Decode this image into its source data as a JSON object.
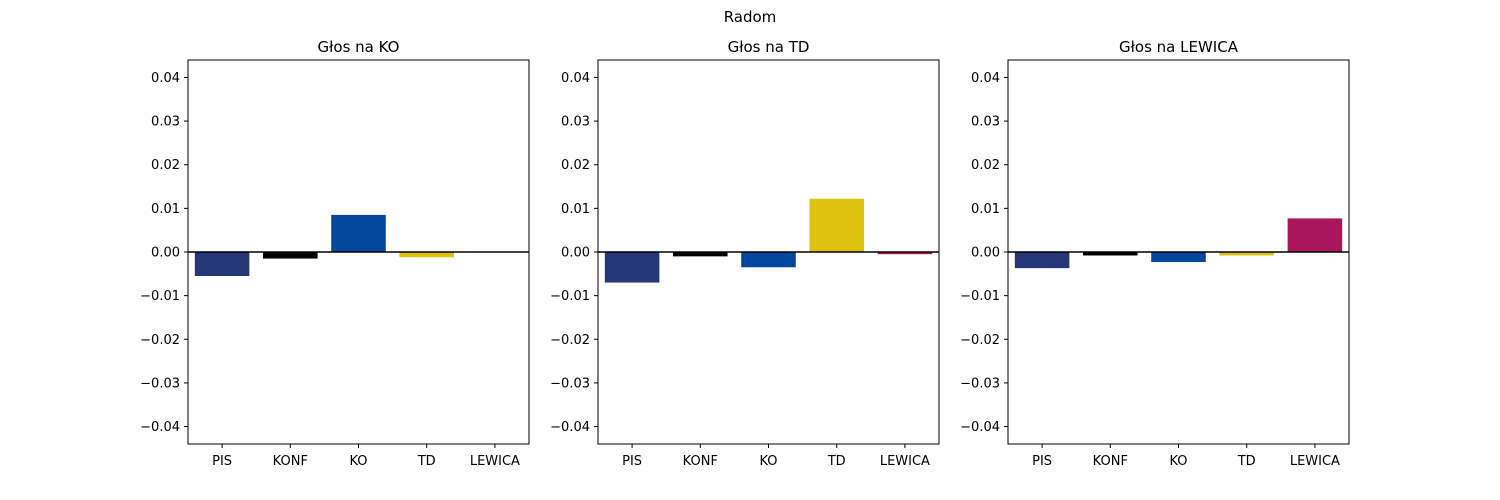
{
  "chart_data": {
    "title": "Radom",
    "type": "bar",
    "categories": [
      "PIS",
      "KONF",
      "KO",
      "TD",
      "LEWICA"
    ],
    "category_colors": {
      "PIS": "#263778",
      "KONF": "#000000",
      "KO": "#03479C",
      "TD": "#DCC30E",
      "LEWICA": "#AA165A"
    },
    "ylim": [
      -0.044,
      0.044
    ],
    "yticks": [
      -0.04,
      -0.03,
      -0.02,
      -0.01,
      0.0,
      0.01,
      0.02,
      0.03,
      0.04
    ],
    "ytick_labels": [
      "−0.04",
      "−0.03",
      "−0.02",
      "−0.01",
      "0.00",
      "0.01",
      "0.02",
      "0.03",
      "0.04"
    ],
    "grid": false,
    "subplots": [
      {
        "title": "Głos na KO",
        "values": [
          -0.0055,
          -0.0015,
          0.0085,
          -0.0012,
          0.0
        ]
      },
      {
        "title": "Głos na TD",
        "values": [
          -0.007,
          -0.001,
          -0.0035,
          0.0122,
          -0.0005
        ]
      },
      {
        "title": "Głos na LEWICA",
        "values": [
          -0.0037,
          -0.0008,
          -0.0023,
          -0.0008,
          0.0077
        ]
      }
    ]
  }
}
